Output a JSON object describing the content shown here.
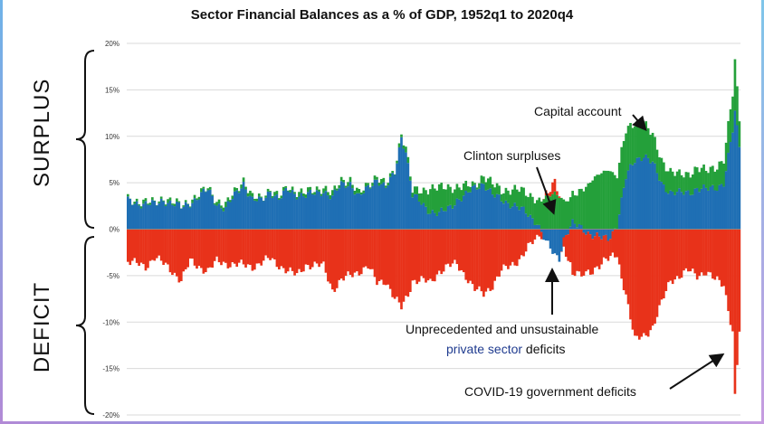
{
  "chart_data": {
    "type": "bar",
    "title": "Sector Financial Balances as a % of GDP, 1952q1 to 2020q4",
    "x_start": "1952q1",
    "x_end": "2020q4",
    "ylim": [
      -20,
      20
    ],
    "y_ticks": [
      "20%",
      "15%",
      "10%",
      "5%",
      "0%",
      "-5%",
      "-10%",
      "-15%",
      "-20%"
    ],
    "y_tick_values": [
      20,
      15,
      10,
      5,
      0,
      -5,
      -10,
      -15,
      -20
    ],
    "grid": true,
    "stacked": true,
    "series": [
      {
        "color": "#1f6fb4",
        "keypoints": [
          [
            1952,
            3.0
          ],
          [
            1955,
            2.6
          ],
          [
            1956,
            3.2
          ],
          [
            1958,
            2.3
          ],
          [
            1960,
            3.5
          ],
          [
            1961,
            4.2
          ],
          [
            1962,
            2.8
          ],
          [
            1963,
            2.2
          ],
          [
            1964,
            3.6
          ],
          [
            1965,
            5.0
          ],
          [
            1966,
            3.1
          ],
          [
            1967,
            3.0
          ],
          [
            1968,
            4.2
          ],
          [
            1969,
            3.2
          ],
          [
            1970,
            4.2
          ],
          [
            1971,
            3.8
          ],
          [
            1972,
            3.6
          ],
          [
            1973,
            3.8
          ],
          [
            1974,
            4.2
          ],
          [
            1975,
            3.4
          ],
          [
            1976,
            4.8
          ],
          [
            1977,
            5.0
          ],
          [
            1978,
            3.4
          ],
          [
            1979,
            4.4
          ],
          [
            1980,
            5.5
          ],
          [
            1981,
            4.4
          ],
          [
            1982,
            6.0
          ],
          [
            1982.75,
            10.0
          ],
          [
            1983.25,
            8.5
          ],
          [
            1984,
            3.6
          ],
          [
            1985,
            2.8
          ],
          [
            1986,
            2.0
          ],
          [
            1987,
            1.6
          ],
          [
            1988,
            2.2
          ],
          [
            1989,
            3.2
          ],
          [
            1990,
            3.6
          ],
          [
            1991,
            4.5
          ],
          [
            1992,
            5.0
          ],
          [
            1993,
            3.6
          ],
          [
            1994,
            3.2
          ],
          [
            1995,
            2.8
          ],
          [
            1996,
            2.2
          ],
          [
            1997,
            1.6
          ],
          [
            1998,
            0.8
          ],
          [
            1999,
            -1.5
          ],
          [
            2000,
            -2.8
          ],
          [
            2000.5,
            -3.0
          ],
          [
            2001,
            -1.0
          ],
          [
            2002,
            0.5
          ],
          [
            2003,
            0.2
          ],
          [
            2004,
            -0.5
          ],
          [
            2005,
            -1.0
          ],
          [
            2006,
            -1.0
          ],
          [
            2007,
            0.5
          ],
          [
            2008,
            5.5
          ],
          [
            2009,
            7.5
          ],
          [
            2010,
            8.0
          ],
          [
            2011,
            7.0
          ],
          [
            2012,
            5.0
          ],
          [
            2013,
            4.0
          ],
          [
            2014,
            3.8
          ],
          [
            2015,
            4.0
          ],
          [
            2016,
            4.4
          ],
          [
            2017,
            4.2
          ],
          [
            2018,
            4.5
          ],
          [
            2019,
            5.0
          ],
          [
            2020,
            10.5
          ],
          [
            2020.25,
            12.5
          ],
          [
            2020.75,
            9.0
          ]
        ]
      },
      {
        "color": "#24a03a",
        "keypoints": [
          [
            1952,
            0.2
          ],
          [
            1960,
            0.2
          ],
          [
            1964,
            0.4
          ],
          [
            1968,
            0.2
          ],
          [
            1970,
            0.3
          ],
          [
            1976,
            0.4
          ],
          [
            1982,
            0.3
          ],
          [
            1984,
            0.5
          ],
          [
            1985,
            1.3
          ],
          [
            1986,
            2.5
          ],
          [
            1987,
            2.8
          ],
          [
            1988,
            2.3
          ],
          [
            1989,
            1.4
          ],
          [
            1990,
            1.0
          ],
          [
            1991,
            0.3
          ],
          [
            1992,
            0.8
          ],
          [
            1993,
            1.2
          ],
          [
            1994,
            1.0
          ],
          [
            1995,
            1.5
          ],
          [
            1996,
            2.0
          ],
          [
            1997,
            2.2
          ],
          [
            1998,
            2.5
          ],
          [
            1999,
            3.5
          ],
          [
            2000,
            4.0
          ],
          [
            2001,
            3.0
          ],
          [
            2002,
            3.0
          ],
          [
            2003,
            4.0
          ],
          [
            2004,
            5.0
          ],
          [
            2005,
            6.0
          ],
          [
            2006,
            6.5
          ],
          [
            2007,
            5.5
          ],
          [
            2008,
            5.0
          ],
          [
            2009,
            4.0
          ],
          [
            2010,
            3.5
          ],
          [
            2011,
            3.0
          ],
          [
            2012,
            2.5
          ],
          [
            2013,
            2.2
          ],
          [
            2014,
            2.0
          ],
          [
            2015,
            2.0
          ],
          [
            2016,
            2.2
          ],
          [
            2017,
            2.0
          ],
          [
            2018,
            2.2
          ],
          [
            2019,
            2.5
          ],
          [
            2020,
            4.0
          ],
          [
            2020.25,
            5.5
          ],
          [
            2020.75,
            3.0
          ]
        ]
      },
      {
        "color": "#e8321a",
        "keypoints": [
          [
            1952,
            -3.5
          ],
          [
            1954,
            -4.0
          ],
          [
            1955,
            -3.0
          ],
          [
            1957,
            -4.5
          ],
          [
            1958,
            -5.5
          ],
          [
            1959,
            -3.5
          ],
          [
            1961,
            -4.5
          ],
          [
            1962,
            -3.5
          ],
          [
            1964,
            -3.8
          ],
          [
            1966,
            -4.0
          ],
          [
            1968,
            -3.2
          ],
          [
            1970,
            -4.5
          ],
          [
            1971,
            -5.0
          ],
          [
            1972,
            -3.8
          ],
          [
            1974,
            -4.0
          ],
          [
            1975,
            -6.5
          ],
          [
            1976,
            -5.5
          ],
          [
            1978,
            -4.5
          ],
          [
            1979,
            -4.0
          ],
          [
            1980,
            -5.8
          ],
          [
            1981,
            -5.5
          ],
          [
            1982,
            -7.5
          ],
          [
            1982.75,
            -8.5
          ],
          [
            1983.5,
            -7.0
          ],
          [
            1984,
            -5.5
          ],
          [
            1985,
            -5.5
          ],
          [
            1986,
            -5.8
          ],
          [
            1987,
            -4.5
          ],
          [
            1988,
            -4.0
          ],
          [
            1989,
            -3.8
          ],
          [
            1990,
            -5.0
          ],
          [
            1991,
            -6.5
          ],
          [
            1992,
            -7.0
          ],
          [
            1993,
            -6.0
          ],
          [
            1994,
            -4.5
          ],
          [
            1995,
            -4.0
          ],
          [
            1996,
            -3.2
          ],
          [
            1997,
            -2.0
          ],
          [
            1998,
            -1.0
          ],
          [
            1999,
            0.5
          ],
          [
            2000,
            1.0
          ],
          [
            2001,
            -1.0
          ],
          [
            2002,
            -4.5
          ],
          [
            2003,
            -5.0
          ],
          [
            2004,
            -4.0
          ],
          [
            2005,
            -3.0
          ],
          [
            2006,
            -2.2
          ],
          [
            2007,
            -3.0
          ],
          [
            2008,
            -7.0
          ],
          [
            2009,
            -12.0
          ],
          [
            2010,
            -11.5
          ],
          [
            2011,
            -10.5
          ],
          [
            2012,
            -8.0
          ],
          [
            2013,
            -5.5
          ],
          [
            2014,
            -5.0
          ],
          [
            2015,
            -4.5
          ],
          [
            2016,
            -5.0
          ],
          [
            2017,
            -4.5
          ],
          [
            2018,
            -5.5
          ],
          [
            2019,
            -6.0
          ],
          [
            2020,
            -11.0
          ],
          [
            2020.25,
            -18.0
          ],
          [
            2020.75,
            -11.0
          ]
        ]
      }
    ]
  },
  "labels": {
    "surplus": "SURPLUS",
    "deficit": "DEFICIT"
  },
  "annotations": {
    "capital_account": "Capital account",
    "clinton_surpluses": "Clinton surpluses",
    "private_line1": "Unprecedented and unsustainable",
    "private_line2_highlight": "private sector",
    "private_line2_rest": " deficits",
    "covid": "COVID-19 government deficits"
  }
}
